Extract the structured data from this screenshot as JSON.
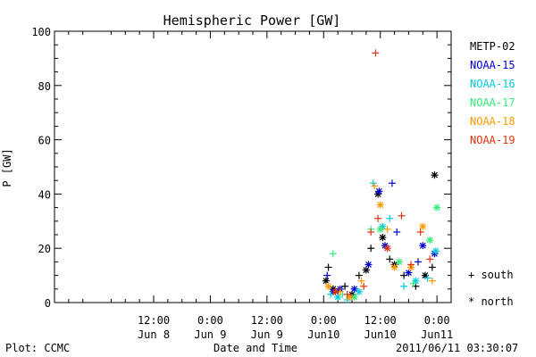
{
  "chart_data": {
    "type": "scatter",
    "title": "Hemispheric Power [GW]",
    "ylabel": "P [GW]",
    "xlabel": "Date and Time",
    "ylim": [
      0,
      100
    ],
    "y_ticks": [
      0,
      20,
      40,
      60,
      80,
      100
    ],
    "xlim": [
      "2011-06-07 15:00",
      "2011-06-11 03:00"
    ],
    "x_ticks": [
      {
        "time": "2011-06-08 12:00",
        "line1": "12:00",
        "line2": "Jun 8"
      },
      {
        "time": "2011-06-09 00:00",
        "line1": "0:00",
        "line2": "Jun 9"
      },
      {
        "time": "2011-06-09 12:00",
        "line1": "12:00",
        "line2": "Jun 9"
      },
      {
        "time": "2011-06-10 00:00",
        "line1": "0:00",
        "line2": "Jun10"
      },
      {
        "time": "2011-06-10 12:00",
        "line1": "12:00",
        "line2": "Jun10"
      },
      {
        "time": "2011-06-11 00:00",
        "line1": "0:00",
        "line2": "Jun11"
      }
    ],
    "x_minor_ticks_hours": 3,
    "legend_position": "right",
    "series": [
      {
        "name": "METP-02",
        "color": "#000000",
        "points": [
          {
            "t": "2011-06-10 00:30",
            "y": 8,
            "m": "north"
          },
          {
            "t": "2011-06-10 01:00",
            "y": 13,
            "m": "south"
          },
          {
            "t": "2011-06-10 02:00",
            "y": 5,
            "m": "north"
          },
          {
            "t": "2011-06-10 03:00",
            "y": 4,
            "m": "south"
          },
          {
            "t": "2011-06-10 04:30",
            "y": 6,
            "m": "south"
          },
          {
            "t": "2011-06-10 06:00",
            "y": 3,
            "m": "north"
          },
          {
            "t": "2011-06-10 07:30",
            "y": 10,
            "m": "south"
          },
          {
            "t": "2011-06-10 09:00",
            "y": 12,
            "m": "north"
          },
          {
            "t": "2011-06-10 10:00",
            "y": 20,
            "m": "south"
          },
          {
            "t": "2011-06-10 11:30",
            "y": 40,
            "m": "north"
          },
          {
            "t": "2011-06-10 12:30",
            "y": 24,
            "m": "north"
          },
          {
            "t": "2011-06-10 14:00",
            "y": 16,
            "m": "south"
          },
          {
            "t": "2011-06-10 15:00",
            "y": 14,
            "m": "north"
          },
          {
            "t": "2011-06-10 17:00",
            "y": 10,
            "m": "south"
          },
          {
            "t": "2011-06-10 19:30",
            "y": 6,
            "m": "south"
          },
          {
            "t": "2011-06-10 21:30",
            "y": 10,
            "m": "north"
          },
          {
            "t": "2011-06-10 23:00",
            "y": 13,
            "m": "south"
          },
          {
            "t": "2011-06-10 23:30",
            "y": 47,
            "m": "north"
          }
        ]
      },
      {
        "name": "NOAA-15",
        "color": "#0000cc",
        "points": [
          {
            "t": "2011-06-10 00:45",
            "y": 10,
            "m": "south"
          },
          {
            "t": "2011-06-10 02:00",
            "y": 4,
            "m": "north"
          },
          {
            "t": "2011-06-10 03:30",
            "y": 5,
            "m": "north"
          },
          {
            "t": "2011-06-10 06:30",
            "y": 5,
            "m": "north"
          },
          {
            "t": "2011-06-10 09:30",
            "y": 14,
            "m": "north"
          },
          {
            "t": "2011-06-10 11:45",
            "y": 41,
            "m": "north"
          },
          {
            "t": "2011-06-10 13:00",
            "y": 21,
            "m": "north"
          },
          {
            "t": "2011-06-10 14:30",
            "y": 44,
            "m": "south"
          },
          {
            "t": "2011-06-10 15:30",
            "y": 26,
            "m": "south"
          },
          {
            "t": "2011-06-10 18:00",
            "y": 11,
            "m": "north"
          },
          {
            "t": "2011-06-10 20:00",
            "y": 15,
            "m": "south"
          },
          {
            "t": "2011-06-10 21:00",
            "y": 21,
            "m": "north"
          },
          {
            "t": "2011-06-10 23:30",
            "y": 18,
            "m": "north"
          }
        ]
      },
      {
        "name": "NOAA-16",
        "color": "#00ccdd",
        "points": [
          {
            "t": "2011-06-10 01:30",
            "y": 3,
            "m": "south"
          },
          {
            "t": "2011-06-10 03:00",
            "y": 2,
            "m": "north"
          },
          {
            "t": "2011-06-10 05:00",
            "y": 1,
            "m": "south"
          },
          {
            "t": "2011-06-10 07:30",
            "y": 4,
            "m": "north"
          },
          {
            "t": "2011-06-10 10:30",
            "y": 44,
            "m": "south"
          },
          {
            "t": "2011-06-10 12:30",
            "y": 28,
            "m": "north"
          },
          {
            "t": "2011-06-10 14:00",
            "y": 31,
            "m": "south"
          },
          {
            "t": "2011-06-10 17:00",
            "y": 6,
            "m": "south"
          },
          {
            "t": "2011-06-10 19:30",
            "y": 8,
            "m": "north"
          },
          {
            "t": "2011-06-10 22:00",
            "y": 9,
            "m": "south"
          },
          {
            "t": "2011-06-10 23:45",
            "y": 19,
            "m": "north"
          }
        ]
      },
      {
        "name": "NOAA-17",
        "color": "#33ee77",
        "points": [
          {
            "t": "2011-06-10 02:00",
            "y": 18,
            "m": "south"
          },
          {
            "t": "2011-06-10 04:00",
            "y": 3,
            "m": "south"
          },
          {
            "t": "2011-06-10 06:30",
            "y": 2,
            "m": "north"
          },
          {
            "t": "2011-06-10 10:00",
            "y": 27,
            "m": "south"
          },
          {
            "t": "2011-06-10 12:00",
            "y": 27,
            "m": "north"
          },
          {
            "t": "2011-06-10 16:00",
            "y": 15,
            "m": "north"
          },
          {
            "t": "2011-06-10 19:00",
            "y": 7,
            "m": "south"
          },
          {
            "t": "2011-06-10 22:30",
            "y": 23,
            "m": "north"
          },
          {
            "t": "2011-06-11 00:00",
            "y": 35,
            "m": "north"
          }
        ]
      },
      {
        "name": "NOAA-18",
        "color": "#ff9900",
        "points": [
          {
            "t": "2011-06-10 01:00",
            "y": 6,
            "m": "north"
          },
          {
            "t": "2011-06-10 03:30",
            "y": 4,
            "m": "south"
          },
          {
            "t": "2011-06-10 05:30",
            "y": 2,
            "m": "north"
          },
          {
            "t": "2011-06-10 08:00",
            "y": 8,
            "m": "south"
          },
          {
            "t": "2011-06-10 10:45",
            "y": 43,
            "m": "south"
          },
          {
            "t": "2011-06-10 12:00",
            "y": 36,
            "m": "north"
          },
          {
            "t": "2011-06-10 13:30",
            "y": 27,
            "m": "south"
          },
          {
            "t": "2011-06-10 15:00",
            "y": 13,
            "m": "north"
          },
          {
            "t": "2011-06-10 18:30",
            "y": 13,
            "m": "north"
          },
          {
            "t": "2011-06-10 21:00",
            "y": 28,
            "m": "north"
          },
          {
            "t": "2011-06-10 23:00",
            "y": 8,
            "m": "south"
          }
        ]
      },
      {
        "name": "NOAA-19",
        "color": "#dd3311",
        "points": [
          {
            "t": "2011-06-10 02:30",
            "y": 4,
            "m": "north"
          },
          {
            "t": "2011-06-10 05:00",
            "y": 3,
            "m": "south"
          },
          {
            "t": "2011-06-10 08:30",
            "y": 6,
            "m": "south"
          },
          {
            "t": "2011-06-10 10:00",
            "y": 26,
            "m": "south"
          },
          {
            "t": "2011-06-10 11:00",
            "y": 92,
            "m": "south"
          },
          {
            "t": "2011-06-10 11:30",
            "y": 31,
            "m": "south"
          },
          {
            "t": "2011-06-10 13:30",
            "y": 20,
            "m": "north"
          },
          {
            "t": "2011-06-10 16:30",
            "y": 32,
            "m": "south"
          },
          {
            "t": "2011-06-10 18:30",
            "y": 14,
            "m": "south"
          },
          {
            "t": "2011-06-10 20:30",
            "y": 26,
            "m": "south"
          },
          {
            "t": "2011-06-10 22:30",
            "y": 16,
            "m": "south"
          }
        ]
      }
    ],
    "marker_legend": [
      {
        "symbol": "+",
        "label": "south"
      },
      {
        "symbol": "*",
        "label": "north"
      }
    ]
  },
  "footer": {
    "left": "Plot: CCMC",
    "right": "2011/06/11 03:30:07"
  }
}
